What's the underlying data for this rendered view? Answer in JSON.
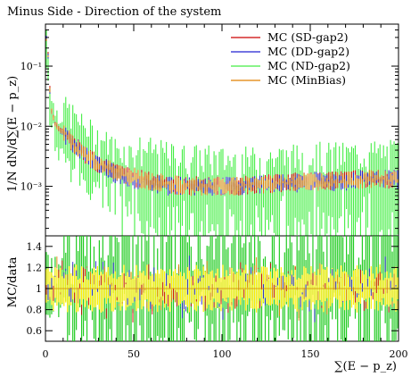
{
  "chart_data": [
    {
      "type": "line",
      "title": "Minus Side - Direction of the system",
      "xlabel": "",
      "ylabel": "1/N dN/d∑(E − p_z)",
      "yscale": "log",
      "ylim": [
        0.00015,
        0.5
      ],
      "xlim": [
        0,
        200
      ],
      "legend_position": "top-right",
      "y_ticks": [
        {
          "value": 0.1,
          "label": "10⁻¹"
        },
        {
          "value": 0.01,
          "label": "10⁻²"
        },
        {
          "value": 0.001,
          "label": "10⁻³"
        }
      ],
      "series": [
        {
          "name": "MC (SD-gap2)",
          "color": "#cc0000",
          "x": [
            1,
            3,
            5,
            8,
            12,
            16,
            20,
            25,
            30,
            35,
            40,
            45,
            50,
            60,
            70,
            80,
            90,
            100,
            110,
            120,
            130,
            140,
            150,
            160,
            170,
            180,
            190,
            199
          ],
          "values": [
            0.3,
            0.022,
            0.012,
            0.009,
            0.007,
            0.005,
            0.0038,
            0.003,
            0.0024,
            0.002,
            0.0017,
            0.0015,
            0.0014,
            0.0012,
            0.0011,
            0.001,
            0.00105,
            0.001,
            0.001,
            0.0011,
            0.0011,
            0.0012,
            0.0012,
            0.0012,
            0.0013,
            0.0013,
            0.0013,
            0.0013
          ]
        },
        {
          "name": "MC (DD-gap2)",
          "color": "#2020d0",
          "x": [
            1,
            3,
            5,
            8,
            12,
            16,
            20,
            25,
            30,
            35,
            40,
            45,
            50,
            60,
            70,
            80,
            90,
            100,
            110,
            120,
            130,
            140,
            150,
            160,
            170,
            180,
            190,
            199
          ],
          "values": [
            0.28,
            0.02,
            0.011,
            0.0085,
            0.0068,
            0.005,
            0.0037,
            0.0029,
            0.0023,
            0.0019,
            0.0016,
            0.0014,
            0.0013,
            0.0011,
            0.001,
            0.001,
            0.001,
            0.001,
            0.001,
            0.0011,
            0.0011,
            0.0011,
            0.0012,
            0.0012,
            0.0012,
            0.0013,
            0.0013,
            0.0013
          ]
        },
        {
          "name": "MC (ND-gap2)",
          "color": "#44ee44",
          "x": [
            1,
            3,
            5,
            8,
            12,
            16,
            20,
            25,
            30,
            35,
            40,
            45,
            50,
            60,
            70,
            80,
            90,
            100,
            110,
            120,
            130,
            140,
            150,
            160,
            170,
            180,
            190,
            199
          ],
          "values": [
            0.25,
            0.02,
            0.012,
            0.01,
            0.009,
            0.007,
            0.005,
            0.004,
            0.003,
            0.0025,
            0.002,
            0.0018,
            0.0016,
            0.0014,
            0.0012,
            0.0011,
            0.0011,
            0.001,
            0.001,
            0.001,
            0.0011,
            0.0011,
            0.0012,
            0.0012,
            0.0012,
            0.0013,
            0.0013,
            0.0013
          ]
        },
        {
          "name": "MC (MinBias)",
          "color": "#e08000",
          "x": [
            1,
            3,
            5,
            8,
            12,
            16,
            20,
            25,
            30,
            35,
            40,
            45,
            50,
            60,
            70,
            80,
            90,
            100,
            110,
            120,
            130,
            140,
            150,
            160,
            170,
            180,
            190,
            199
          ],
          "values": [
            0.27,
            0.021,
            0.0115,
            0.0088,
            0.007,
            0.005,
            0.0038,
            0.003,
            0.0024,
            0.002,
            0.0017,
            0.0015,
            0.0014,
            0.0012,
            0.0011,
            0.001,
            0.001,
            0.001,
            0.001,
            0.0011,
            0.0011,
            0.0012,
            0.0012,
            0.0012,
            0.0012,
            0.0013,
            0.0013,
            0.0013
          ]
        }
      ]
    },
    {
      "type": "line",
      "xlabel": "∑(E − p_z)",
      "ylabel": "MC/data",
      "xlim": [
        0,
        200
      ],
      "ylim": [
        0.5,
        1.5
      ],
      "x_ticks": [
        0,
        50,
        100,
        150,
        200
      ],
      "y_ticks": [
        0.6,
        0.8,
        1,
        1.2,
        1.4
      ],
      "reference_line": 1,
      "band_colors": {
        "inner": "#ffee00",
        "outer": "#22cc22"
      }
    }
  ]
}
